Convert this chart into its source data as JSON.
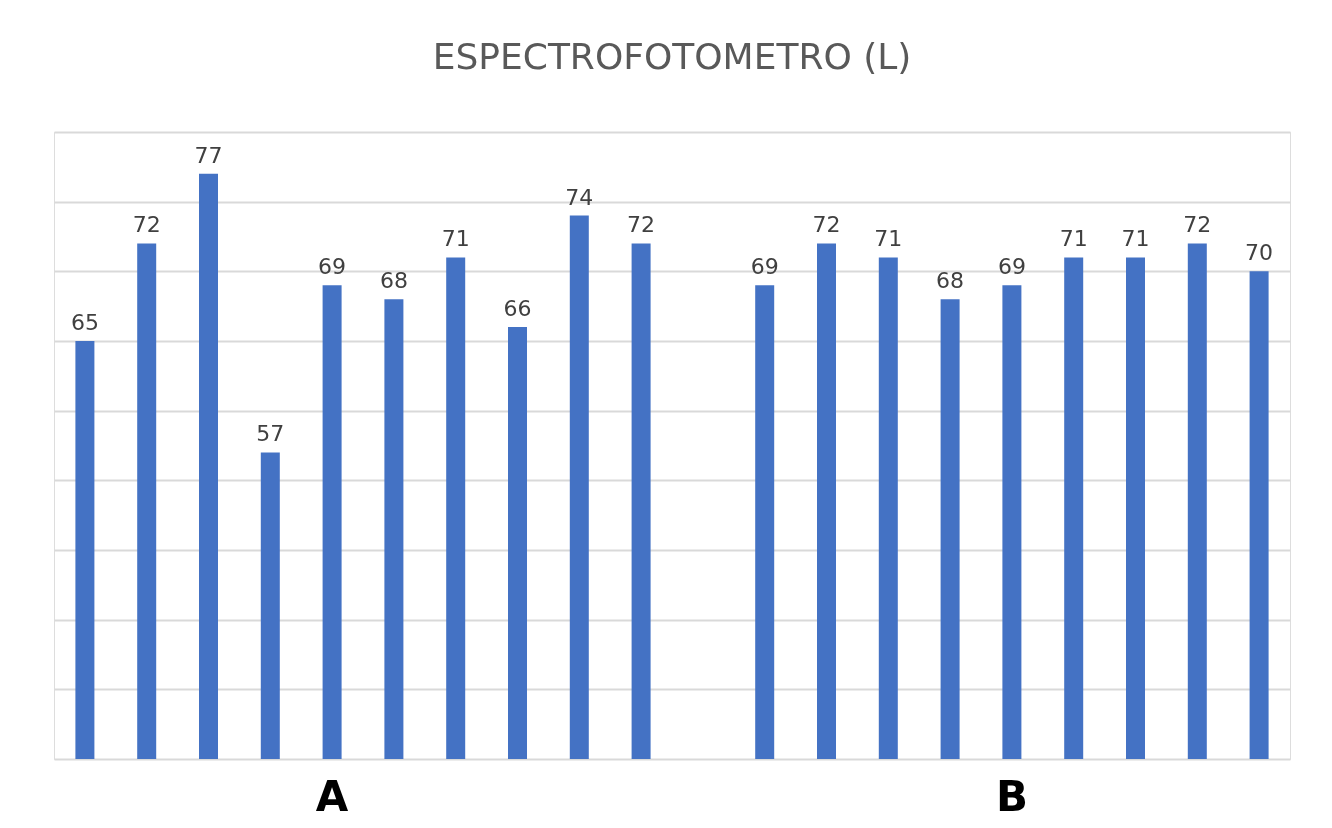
{
  "chart_data": {
    "type": "bar",
    "title": "ESPECTROFOTOMETRO (L)",
    "categories": [
      null,
      null,
      null,
      null,
      "A",
      null,
      null,
      null,
      null,
      null,
      null,
      null,
      null,
      null,
      null,
      "B",
      null,
      null,
      null,
      null
    ],
    "values": [
      65,
      72,
      77,
      57,
      69,
      68,
      71,
      66,
      74,
      72,
      null,
      69,
      72,
      71,
      68,
      69,
      71,
      71,
      72,
      70
    ],
    "color": "#4472c4",
    "data_labels": true,
    "ylim": [
      35,
      80
    ],
    "yticks": [
      {
        "value": 35,
        "label": null
      },
      {
        "value": 40,
        "label": null
      },
      {
        "value": 45,
        "label": null
      },
      {
        "value": 50,
        "label": null
      },
      {
        "value": 55,
        "label": null
      },
      {
        "value": 60,
        "label": null
      },
      {
        "value": 65,
        "label": null
      },
      {
        "value": 70,
        "label": null
      },
      {
        "value": 75,
        "label": null
      },
      {
        "value": 80,
        "label": null
      }
    ],
    "grid": "y"
  }
}
